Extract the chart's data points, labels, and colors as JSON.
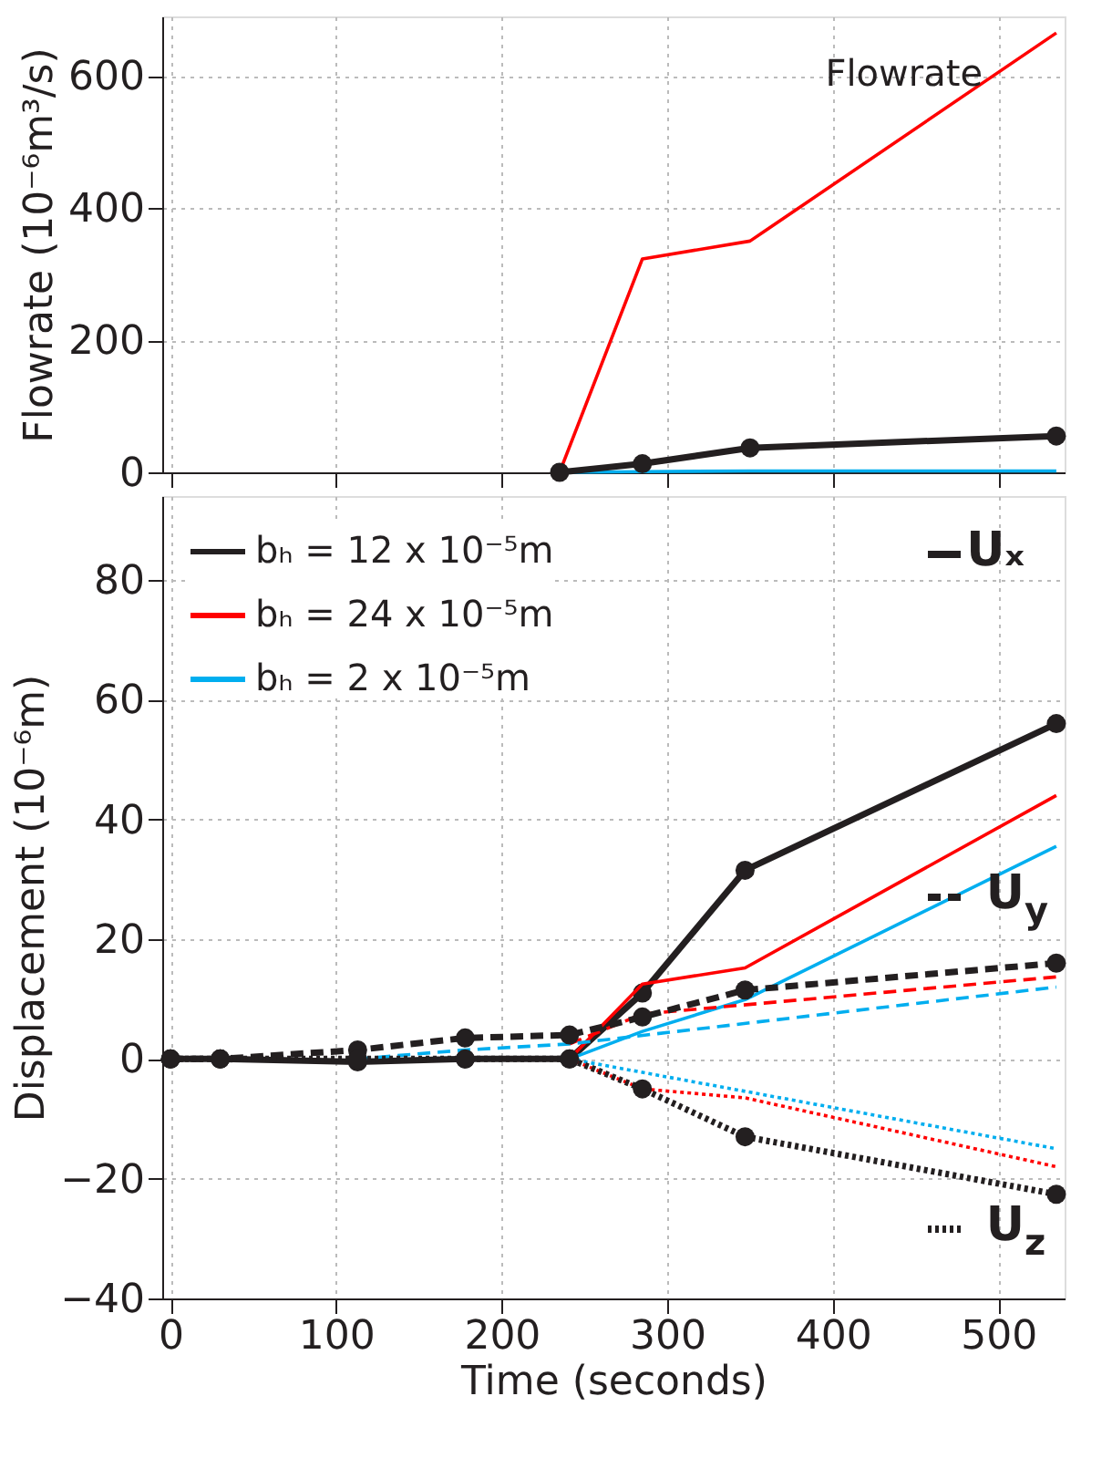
{
  "chart_data": [
    {
      "type": "line",
      "ylabel": "Flowrate (10⁻⁶m³/s)",
      "annotations": [
        "Flowrate"
      ],
      "xlim": [
        -5,
        540
      ],
      "xticks": [
        0,
        100,
        200,
        300,
        400,
        500
      ],
      "ylim": [
        0,
        690
      ],
      "yticks": [
        0,
        200,
        400,
        600
      ],
      "grid": true,
      "tick_labels": "y",
      "legend": false,
      "series": [
        {
          "color": "#ff0000",
          "x": [
            235,
            285,
            350,
            535
          ],
          "values": [
            0,
            323,
            350,
            665
          ],
          "marker": "none",
          "line_style": "solid"
        },
        {
          "color": "#00aeef",
          "x": [
            235,
            285,
            350,
            535
          ],
          "values": [
            0,
            1,
            2,
            2
          ],
          "marker": "none",
          "line_style": "solid"
        },
        {
          "color": "#231f20",
          "x": [
            235,
            285,
            350,
            535
          ],
          "values": [
            0,
            13,
            37,
            55
          ],
          "marker": "circle",
          "line_style": "solid"
        }
      ]
    },
    {
      "type": "line",
      "xlabel": "Time (seconds)",
      "ylabel": "Displacement (10⁻⁶m)",
      "annotations": [
        "Uₓ",
        "U$_{y}$",
        "U$_{z}$"
      ],
      "xlim": [
        -5,
        540
      ],
      "xticks": [
        0,
        100,
        200,
        300,
        400,
        500
      ],
      "ylim": [
        -40,
        94
      ],
      "yticks": [
        -40,
        -20,
        0,
        20,
        40,
        60,
        80
      ],
      "grid": true,
      "legend": "top left",
      "series": [
        {
          "name": "bₕ = 12 x 10⁻⁵m",
          "color": "#231f20",
          "x": [
            0,
            30,
            113,
            178,
            241,
            285,
            347,
            535
          ],
          "values": [
            0,
            0,
            -0.5,
            0,
            0,
            11,
            31.5,
            56
          ],
          "marker": "circle",
          "line_style": "solid"
        },
        {
          "name": "bₕ = 24 x 10⁻⁵m",
          "color": "#ff0000",
          "x": [
            241,
            285,
            347,
            535
          ],
          "values": [
            0,
            12.5,
            15.2,
            44
          ],
          "marker": "none",
          "line_style": "solid"
        },
        {
          "name": "bₕ = 2 x 10⁻⁵m",
          "color": "#00aeef",
          "x": [
            241,
            285,
            347,
            535
          ],
          "values": [
            0,
            4.6,
            9.9,
            35.5
          ],
          "marker": "none",
          "line_style": "solid"
        },
        {
          "color": "#ff0000",
          "x": [
            241,
            285,
            535
          ],
          "values": [
            2.5,
            7.5,
            13.7
          ],
          "marker": "none",
          "line_style": "dashed"
        },
        {
          "color": "#00aeef",
          "x": [
            113,
            178,
            241,
            535
          ],
          "values": [
            0,
            1.5,
            2.5,
            12
          ],
          "marker": "none",
          "line_style": "dashed"
        },
        {
          "color": "#231f20",
          "x": [
            0,
            30,
            113,
            178,
            241,
            285,
            347,
            535
          ],
          "values": [
            0,
            0,
            1.5,
            3.5,
            4,
            7,
            11.5,
            16
          ],
          "marker": "circle",
          "line_style": "dashed"
        },
        {
          "color": "#00aeef",
          "x": [
            241,
            535
          ],
          "values": [
            0,
            -15
          ],
          "marker": "none",
          "line_style": "dotted"
        },
        {
          "color": "#ff0000",
          "x": [
            241,
            285,
            347,
            535
          ],
          "values": [
            0,
            -5,
            -6.5,
            -18
          ],
          "marker": "none",
          "line_style": "dotted"
        },
        {
          "color": "#231f20",
          "x": [
            0,
            30,
            113,
            178,
            241,
            285,
            347,
            535
          ],
          "values": [
            0,
            0,
            0,
            0,
            0,
            -5,
            -13,
            -22.6
          ],
          "marker": "circle",
          "line_style": "dotted"
        }
      ]
    }
  ]
}
